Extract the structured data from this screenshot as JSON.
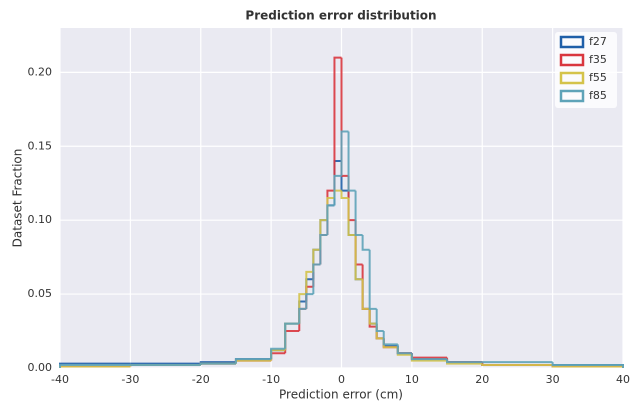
{
  "chart_data": {
    "type": "histogram",
    "title": "Prediction error distribution",
    "x_label": "Prediction error (cm)",
    "y_label": "Dataset Fraction",
    "bins": [
      -40,
      -30,
      -20,
      -15,
      -10,
      -8,
      -6,
      -5,
      -4,
      -3,
      -2,
      -1,
      0,
      1,
      2,
      3,
      4,
      5,
      6,
      8,
      10,
      15,
      20,
      30,
      40
    ],
    "series": [
      {
        "name": "f27",
        "color": "#1f5fa8",
        "values": [
          0.003,
          0.003,
          0.004,
          0.006,
          0.012,
          0.03,
          0.045,
          0.06,
          0.08,
          0.1,
          0.11,
          0.14,
          0.12,
          0.09,
          0.06,
          0.04,
          0.03,
          0.02,
          0.015,
          0.01,
          0.006,
          0.004,
          0.002,
          0.002
        ]
      },
      {
        "name": "f35",
        "color": "#d9363e",
        "values": [
          0.001,
          0.002,
          0.003,
          0.005,
          0.01,
          0.025,
          0.04,
          0.055,
          0.07,
          0.09,
          0.12,
          0.21,
          0.13,
          0.1,
          0.07,
          0.04,
          0.028,
          0.02,
          0.014,
          0.01,
          0.007,
          0.004,
          0.002,
          0.001
        ]
      },
      {
        "name": "f55",
        "color": "#d4c34a",
        "values": [
          0.001,
          0.002,
          0.003,
          0.005,
          0.012,
          0.03,
          0.05,
          0.065,
          0.08,
          0.1,
          0.115,
          0.12,
          0.115,
          0.09,
          0.06,
          0.04,
          0.03,
          0.02,
          0.014,
          0.009,
          0.005,
          0.003,
          0.002,
          0.001
        ]
      },
      {
        "name": "f85",
        "color": "#5ea3b8",
        "values": [
          0.002,
          0.002,
          0.003,
          0.006,
          0.013,
          0.03,
          0.04,
          0.05,
          0.07,
          0.09,
          0.11,
          0.13,
          0.16,
          0.12,
          0.09,
          0.08,
          0.04,
          0.025,
          0.016,
          0.01,
          0.006,
          0.004,
          0.004,
          0.002
        ]
      }
    ],
    "xlim": [
      -40,
      40
    ],
    "xticks": [
      -40,
      -30,
      -20,
      -10,
      0,
      10,
      20,
      30,
      40
    ],
    "ylim": [
      0,
      0.23
    ],
    "yticks": [
      {
        "value": 0,
        "label": "0.00"
      },
      {
        "value": 0.05,
        "label": "0.05"
      },
      {
        "value": 0.1,
        "label": "0.10"
      },
      {
        "value": 0.15,
        "label": "0.15"
      },
      {
        "value": 0.2,
        "label": "0.20"
      }
    ],
    "grid": true,
    "legend": "upper right"
  }
}
